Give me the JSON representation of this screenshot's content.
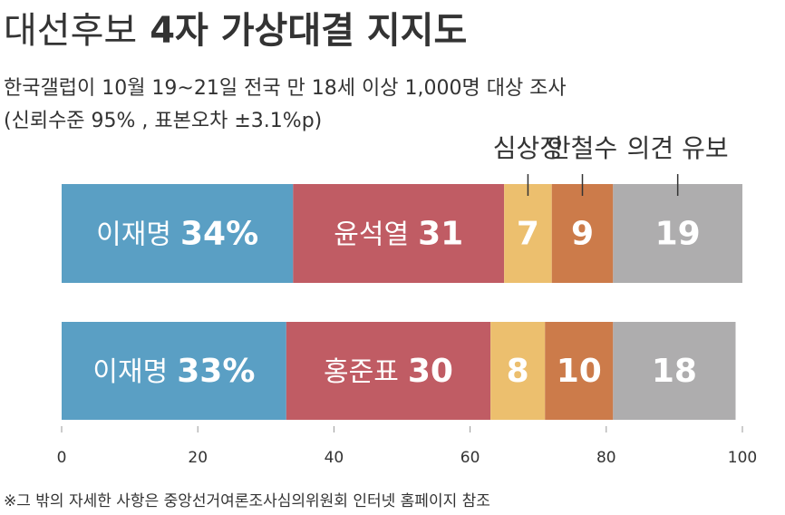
{
  "chart_data": {
    "type": "stacked-bar-horizontal",
    "title": [
      "대선후보",
      "4자 가상대결 지지도"
    ],
    "subtitle": [
      "한국갤럽이 10월 19~21일 전국 만 18세 이상 1,000명 대상 조사",
      "(신뢰수준 95% , 표본오차 ±3.1%p)"
    ],
    "series": [
      {
        "color": "#5a9fc4",
        "labels": [
          "이재명",
          "이재명"
        ],
        "values": [
          34,
          33
        ],
        "value_labels": [
          "34%",
          "33%"
        ]
      },
      {
        "color": "#c05c64",
        "labels": [
          "윤석열",
          "홍준표"
        ],
        "values": [
          31,
          30
        ]
      },
      {
        "name": "심상정",
        "color": "#ecbf6e",
        "values": [
          7,
          8
        ]
      },
      {
        "name": "안철수",
        "color": "#cc7b4a",
        "values": [
          9,
          10
        ]
      },
      {
        "name": "의견 유보",
        "color": "#aeadae",
        "values": [
          19,
          18
        ]
      }
    ],
    "xlim": [
      0,
      100
    ],
    "xticks": [
      0,
      20,
      40,
      60,
      80,
      100
    ],
    "footnote": "※그 밖의 자세한 사항은 중앙선거여론조사심의위원회 인터넷 홈페이지 참조"
  }
}
